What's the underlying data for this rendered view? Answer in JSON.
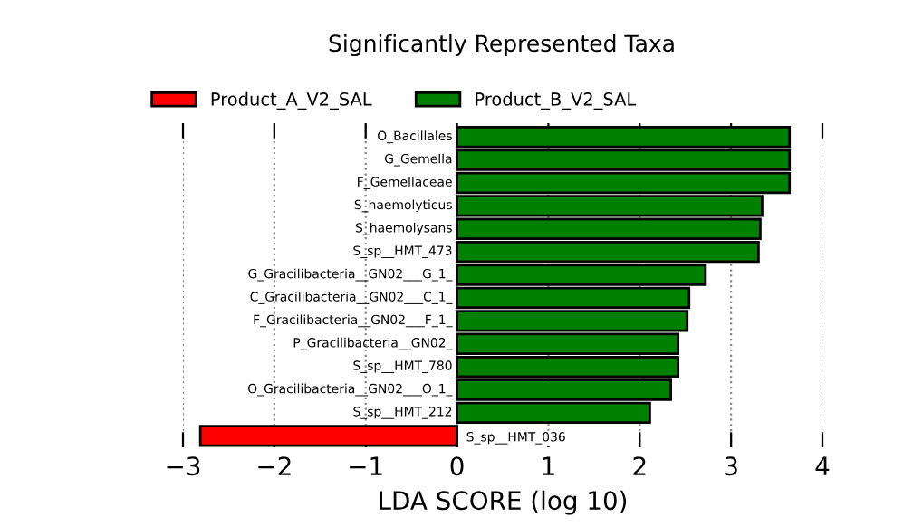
{
  "chart_data": {
    "type": "bar",
    "orientation": "horizontal",
    "title": "Significantly Represented Taxa",
    "xlabel": "LDA SCORE (log 10)",
    "categories": [
      "O_Bacillales",
      "G_Gemella",
      "F_Gemellaceae",
      "S_haemolyticus",
      "S_haemolysans",
      "S_sp__HMT_473",
      "G_Gracilibacteria__GN02___G_1_",
      "C_Gracilibacteria__GN02___C_1_",
      "F_Gracilibacteria__GN02___F_1_",
      "P_Gracilibacteria__GN02_",
      "S_sp__HMT_780",
      "O_Gracilibacteria__GN02___O_1_",
      "S_sp__HMT_212",
      "S_sp__HMT_036"
    ],
    "series": [
      {
        "name": "Product_A_V2_SAL",
        "color": "#ff0000",
        "values": [
          null,
          null,
          null,
          null,
          null,
          null,
          null,
          null,
          null,
          null,
          null,
          null,
          null,
          -2.81
        ]
      },
      {
        "name": "Product_B_V2_SAL",
        "color": "#008000",
        "values": [
          3.64,
          3.64,
          3.64,
          3.34,
          3.32,
          3.3,
          2.72,
          2.54,
          2.52,
          2.42,
          2.42,
          2.34,
          2.11,
          null
        ]
      }
    ],
    "xlim": [
      -3,
      4
    ],
    "xticks": [
      {
        "value": -3,
        "label": "−3"
      },
      {
        "value": -2,
        "label": "−2"
      },
      {
        "value": -1,
        "label": "−1"
      },
      0,
      1,
      2,
      3,
      4
    ],
    "grid": "x",
    "legend": "top"
  }
}
